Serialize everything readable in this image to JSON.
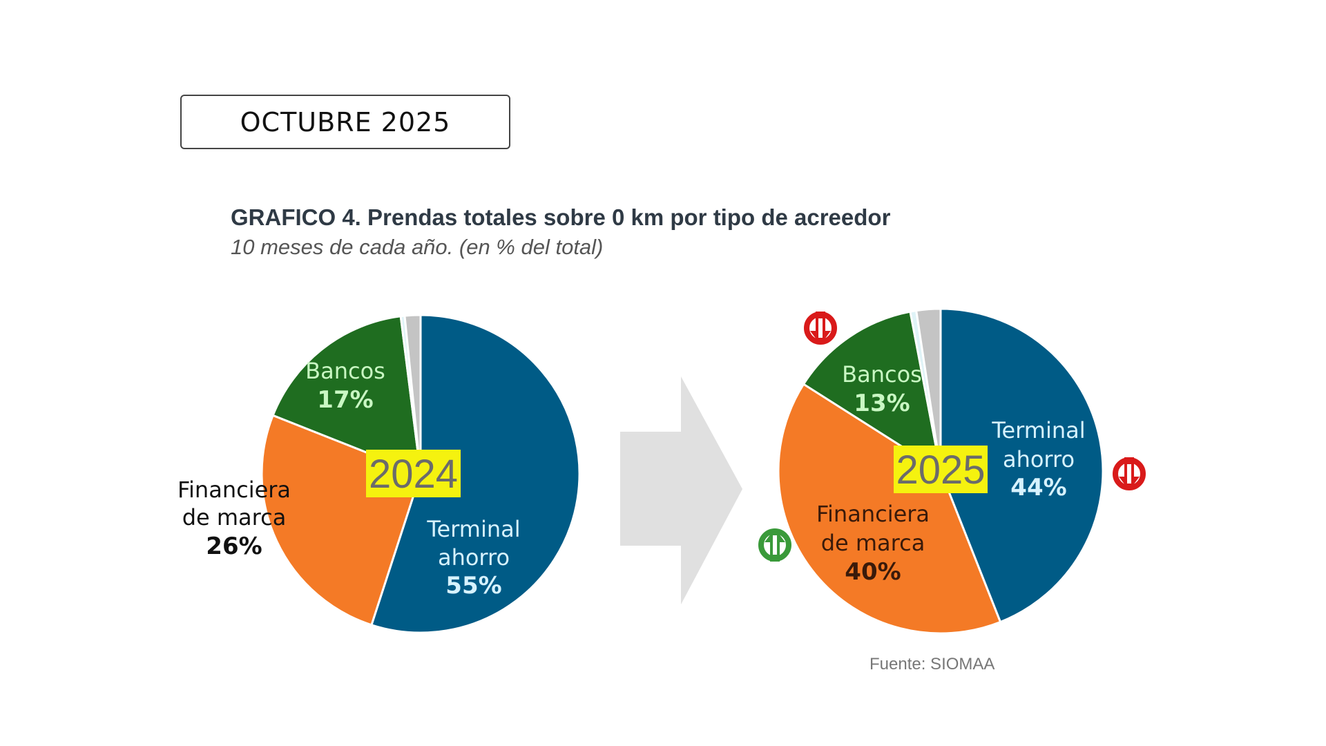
{
  "header": {
    "label": "OCTUBRE 2025"
  },
  "chart_data": [
    {
      "type": "pie",
      "title": "GRAFICO 4. Prendas totales sobre 0 km por tipo de acreedor",
      "subtitle": "10 meses de cada año. (en % del total)",
      "year_label": "2024",
      "slices": [
        {
          "label": [
            "Terminal",
            "ahorro"
          ],
          "value": 55,
          "value_label": "55%",
          "color": "#005b86",
          "label_color": "#d6f2ff"
        },
        {
          "label": [
            "Financiera",
            "de marca"
          ],
          "value": 26,
          "value_label": "26%",
          "color": "#f47a26",
          "label_color": "#111111"
        },
        {
          "label": [
            "Bancos"
          ],
          "value": 17,
          "value_label": "17%",
          "color": "#1f6d20",
          "label_color": "#c9f7c3"
        },
        {
          "label": [],
          "value": 0.4,
          "color": "#dff3f7"
        },
        {
          "label": [],
          "value": 1.6,
          "color": "#c4c4c4"
        }
      ]
    },
    {
      "type": "pie",
      "year_label": "2025",
      "slices": [
        {
          "label": [
            "Terminal",
            "ahorro"
          ],
          "value": 44,
          "value_label": "44%",
          "color": "#005b86",
          "label_color": "#d6f2ff",
          "trend": "down"
        },
        {
          "label": [
            "Financiera",
            "de marca"
          ],
          "value": 40,
          "value_label": "40%",
          "color": "#f47a26",
          "label_color": "#3a1a0a",
          "trend": "up"
        },
        {
          "label": [
            "Bancos"
          ],
          "value": 13,
          "value_label": "13%",
          "color": "#1f6d20",
          "label_color": "#c9f7c3",
          "trend": "down"
        },
        {
          "label": [],
          "value": 0.6,
          "color": "#dff3f7"
        },
        {
          "label": [],
          "value": 2.4,
          "color": "#c4c4c4"
        }
      ]
    }
  ],
  "colors": {
    "year_box": "#f5f20f",
    "year_text": "#6b6b6b",
    "arrow": "#e0e0e0",
    "trend_down": "#d91a1a",
    "trend_up": "#3a9a3a"
  },
  "source": "Fuente: SIOMAA"
}
